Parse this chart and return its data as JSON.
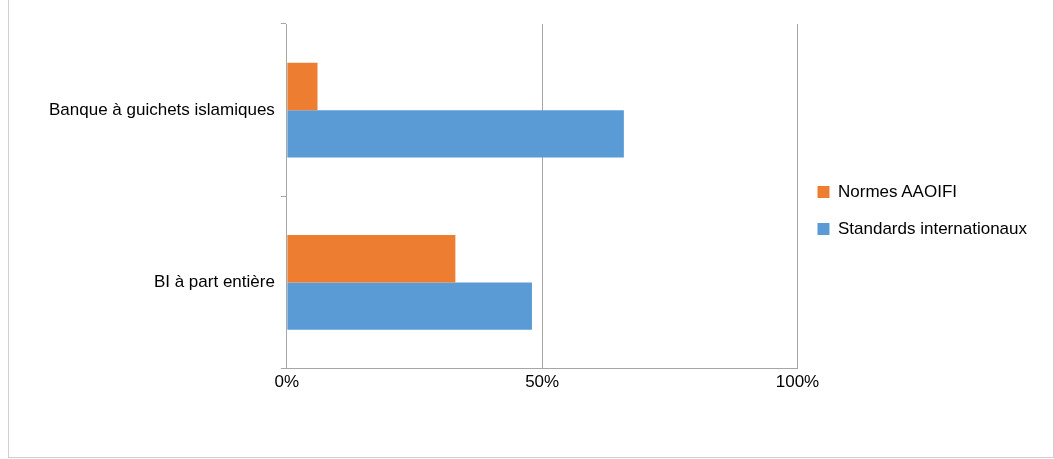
{
  "chart_data": {
    "type": "bar",
    "orientation": "horizontal",
    "categories": [
      "Banque à guichets islamiques",
      "BI à part entière"
    ],
    "series": [
      {
        "name": "Normes AAOIFI",
        "color": "#ed7d31",
        "values": [
          6,
          33
        ]
      },
      {
        "name": "Standards internationaux",
        "color": "#5b9bd5",
        "values": [
          66,
          48
        ]
      }
    ],
    "xlim": [
      0,
      100
    ],
    "xticks": [
      {
        "value": 0,
        "label": "0%"
      },
      {
        "value": 50,
        "label": "50%"
      },
      {
        "value": 100,
        "label": "100%"
      }
    ],
    "grid": "x",
    "legend": "right"
  }
}
